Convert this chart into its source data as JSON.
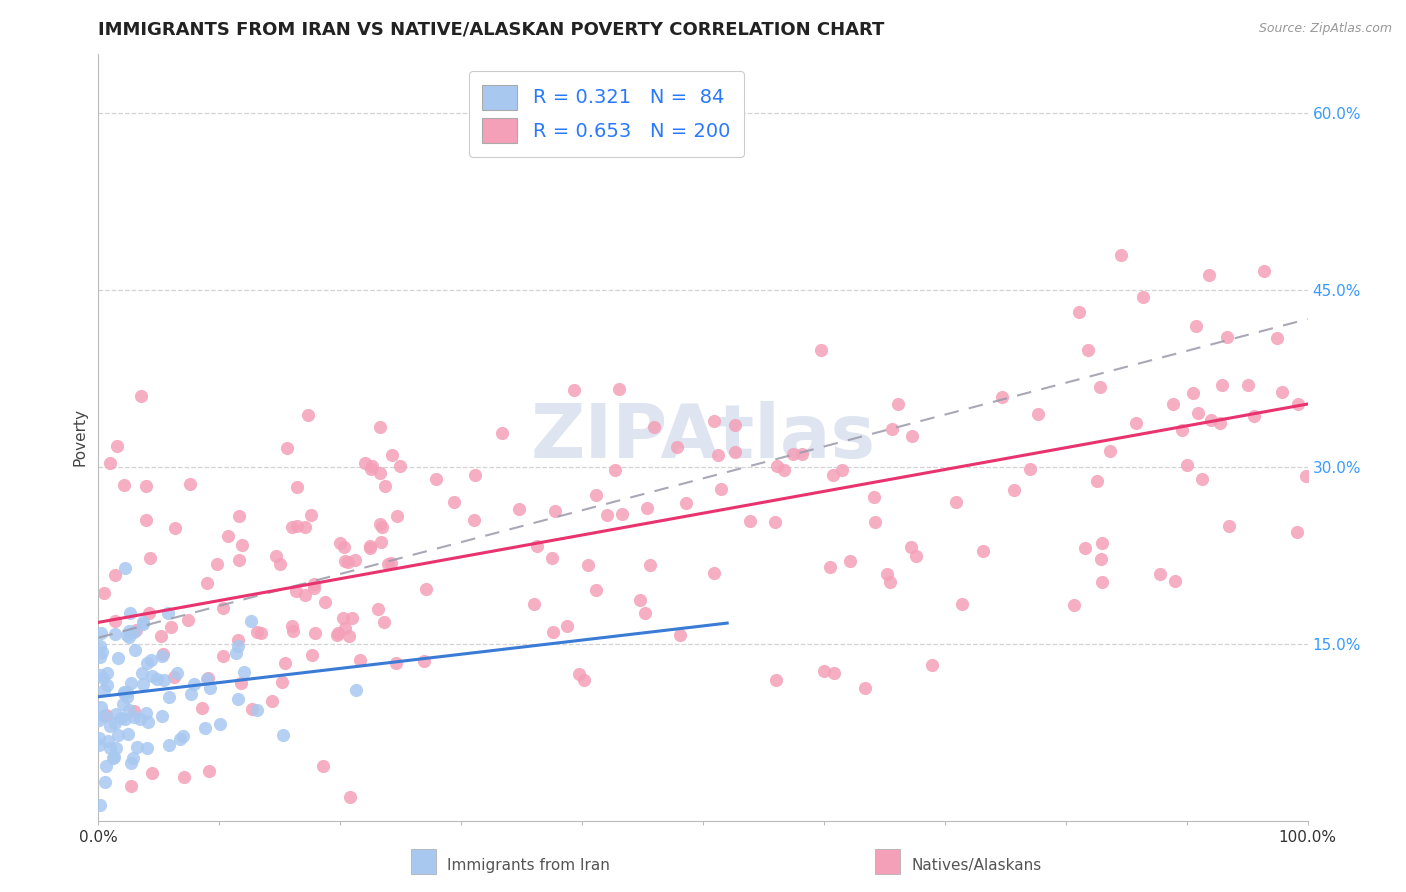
{
  "title": "IMMIGRANTS FROM IRAN VS NATIVE/ALASKAN POVERTY CORRELATION CHART",
  "source": "Source: ZipAtlas.com",
  "ylabel": "Poverty",
  "watermark": "ZIPAtlas",
  "series1": {
    "label": "Immigrants from Iran",
    "color": "#a8c8f0",
    "line_color": "#3a7bd5",
    "R": 0.321,
    "N": 84,
    "slope": 0.12,
    "intercept": 0.105
  },
  "series2": {
    "label": "Natives/Alaskans",
    "color": "#f4a0b8",
    "line_color": "#e8336e",
    "R": 0.653,
    "N": 200,
    "slope": 0.185,
    "intercept": 0.168
  },
  "dashed_slope": 0.27,
  "dashed_intercept": 0.155,
  "xlim": [
    0.0,
    1.0
  ],
  "ylim": [
    0.0,
    0.65
  ],
  "yticks": [
    0.15,
    0.3,
    0.45,
    0.6
  ],
  "ytick_labels": [
    "15.0%",
    "30.0%",
    "45.0%",
    "60.0%"
  ],
  "xticks": [
    0.0,
    0.1,
    0.2,
    0.3,
    0.4,
    0.5,
    0.6,
    0.7,
    0.8,
    0.9,
    1.0
  ],
  "xtick_labels_show": [
    true,
    false,
    false,
    false,
    false,
    false,
    false,
    false,
    false,
    false,
    true
  ],
  "xtick_labels": [
    "0.0%",
    "",
    "",
    "",
    "",
    "",
    "",
    "",
    "",
    "",
    "100.0%"
  ],
  "grid_color": "#c8c8c8",
  "background_color": "#ffffff",
  "legend_text_color": "#2979ff",
  "title_fontsize": 13,
  "axis_label_fontsize": 11,
  "tick_fontsize": 11,
  "watermark_color": "#c8d4e8",
  "watermark_fontsize": 54
}
